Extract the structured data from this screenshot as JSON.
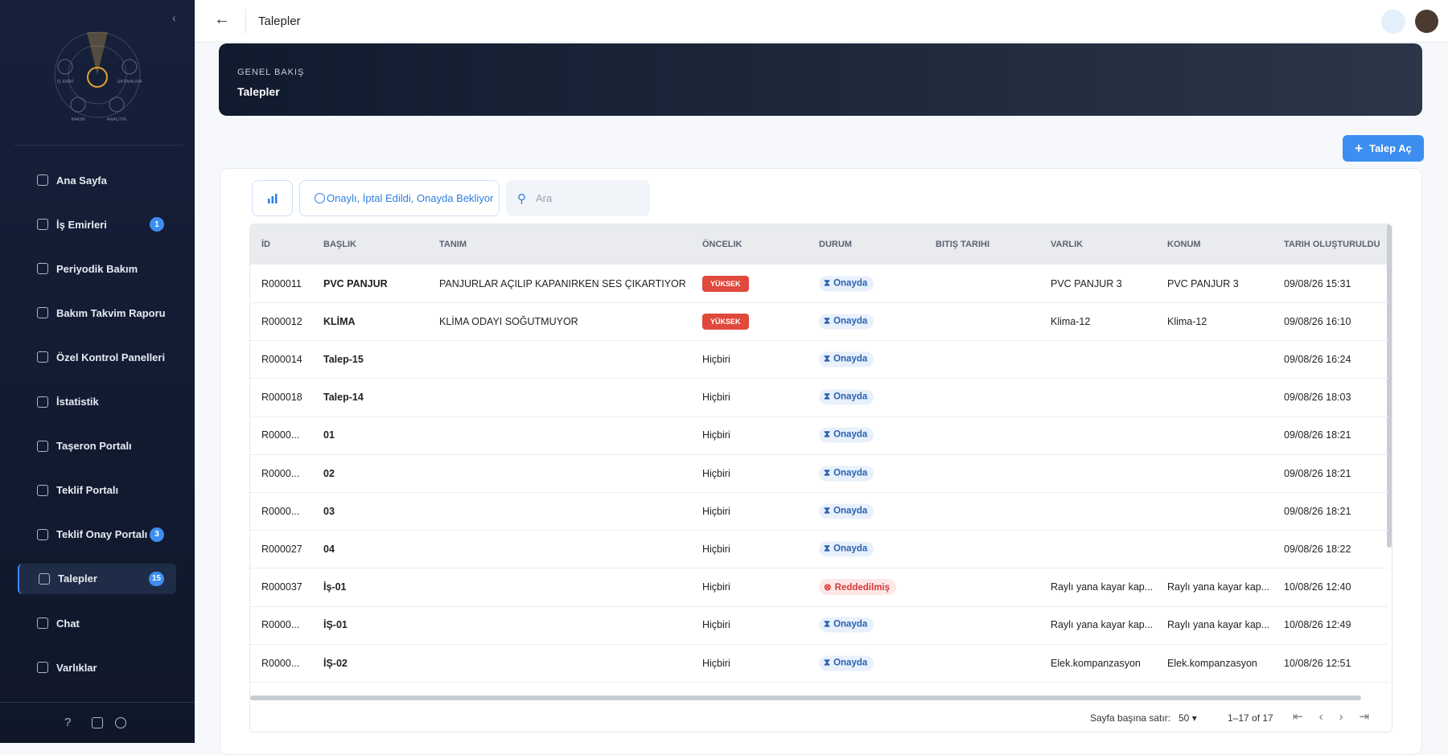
{
  "sidebar": {
    "logo_labels": [
      "İŞ EMRİ",
      "SATINALMA",
      "BAKIM",
      "ANALİTİK"
    ],
    "nav": [
      {
        "label": "Ana Sayfa"
      },
      {
        "label": "İş Emirleri",
        "badge": "1"
      },
      {
        "label": "Periyodik Bakım"
      },
      {
        "label": "Bakım Takvim Raporu"
      },
      {
        "label": "Özel Kontrol Panelleri"
      },
      {
        "label": "İstatistik"
      },
      {
        "label": "Taşeron Portalı"
      },
      {
        "label": "Teklif Portalı"
      },
      {
        "label": "Teklif Onay Portalı",
        "badge": "3"
      },
      {
        "label": "Talepler",
        "badge": "15"
      },
      {
        "label": "Chat"
      },
      {
        "label": "Varlıklar"
      }
    ],
    "footer_icons": [
      "?"
    ]
  },
  "header": {
    "title": "Talepler"
  },
  "overview": {
    "eyebrow": "GENEL BAKIŞ",
    "title": "Talepler"
  },
  "actions": {
    "create": "Talep Aç"
  },
  "toolbar": {
    "filter": "Onaylı, İptal Edildi, Onayda Bekliyor",
    "search_placeholder": "Ara"
  },
  "table": {
    "columns": [
      "İD",
      "BAŞLIK",
      "TANIM",
      "ÖNCELIK",
      "DURUM",
      "BITIŞ TARIHI",
      "VARLIK",
      "KONUM",
      "TARIH OLUŞTURULDU"
    ],
    "rows": [
      [
        "R000011",
        "PVC PANJUR",
        "PANJURLAR AÇILIP KAPANIRKEN SES ÇIKARTIYOR",
        "YÜKSEK",
        "Onayda",
        null,
        "PVC PANJUR 3",
        "PVC PANJUR 3",
        "09/08/26 15:31"
      ],
      [
        "R000012",
        "KLİMA",
        "KLİMA ODAYI SOĞUTMUYOR",
        "YÜKSEK",
        "Onayda",
        null,
        "Klima-12",
        "Klima-12",
        "09/08/26 16:10"
      ],
      [
        "R000014",
        "Talep-15",
        null,
        "Hiçbiri",
        "Onayda",
        null,
        null,
        null,
        "09/08/26 16:24"
      ],
      [
        "R000018",
        "Talep-14",
        null,
        "Hiçbiri",
        "Onayda",
        null,
        null,
        null,
        "09/08/26 18:03"
      ],
      [
        "R0000...",
        "01",
        null,
        "Hiçbiri",
        "Onayda",
        null,
        null,
        null,
        "09/08/26 18:21"
      ],
      [
        "R0000...",
        "02",
        null,
        "Hiçbiri",
        "Onayda",
        null,
        null,
        null,
        "09/08/26 18:21"
      ],
      [
        "R0000...",
        "03",
        null,
        "Hiçbiri",
        "Onayda",
        null,
        null,
        null,
        "09/08/26 18:21"
      ],
      [
        "R000027",
        "04",
        null,
        "Hiçbiri",
        "Onayda",
        null,
        null,
        null,
        "09/08/26 18:22"
      ],
      [
        "R000037",
        "İş-01",
        null,
        "Hiçbiri",
        "Reddedilmiş",
        null,
        "Raylı yana kayar kap...",
        "Raylı yana kayar kap...",
        "10/08/26 12:40"
      ],
      [
        "R0000...",
        "İŞ-01",
        null,
        "Hiçbiri",
        "Onayda",
        null,
        "Raylı yana kayar kap...",
        "Raylı yana kayar kap...",
        "10/08/26 12:49"
      ],
      [
        "R0000...",
        "İŞ-02",
        null,
        "Hiçbiri",
        "Onayda",
        null,
        "Elek.kompanzasyon",
        "Elek.kompanzasyon",
        "10/08/26 12:51"
      ]
    ]
  },
  "pagination": {
    "rows_per_page_label": "Sayfa başına satır:",
    "rows_per_page": "50",
    "range": "1–17 of 17"
  }
}
